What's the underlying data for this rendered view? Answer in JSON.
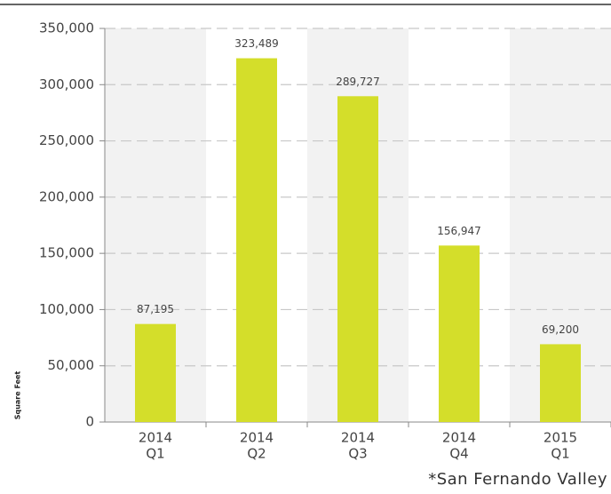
{
  "chart_data": {
    "type": "bar",
    "categories": [
      [
        "2014",
        "Q1"
      ],
      [
        "2014",
        "Q2"
      ],
      [
        "2014",
        "Q3"
      ],
      [
        "2014",
        "Q4"
      ],
      [
        "2015",
        "Q1"
      ]
    ],
    "values": [
      87195,
      323489,
      289727,
      156947,
      69200
    ],
    "value_labels": [
      "87,195",
      "323,489",
      "289,727",
      "156,947",
      "69,200"
    ],
    "color": "#d4de2a",
    "ylim": [
      0,
      350000
    ],
    "yticks": [
      0,
      {
        "value": 50000,
        "label": "50,000"
      },
      {
        "value": 100000,
        "label": "100,000"
      },
      {
        "value": 150000,
        "label": "150,000"
      },
      {
        "value": 200000,
        "label": "200,000"
      },
      {
        "value": 250000,
        "label": "250,000"
      },
      {
        "value": 300000,
        "label": "300,000"
      },
      {
        "value": 350000,
        "label": "350,000"
      }
    ],
    "y_label": "Square Feet",
    "footnote": "*San Fernando Valley",
    "grid": true
  }
}
